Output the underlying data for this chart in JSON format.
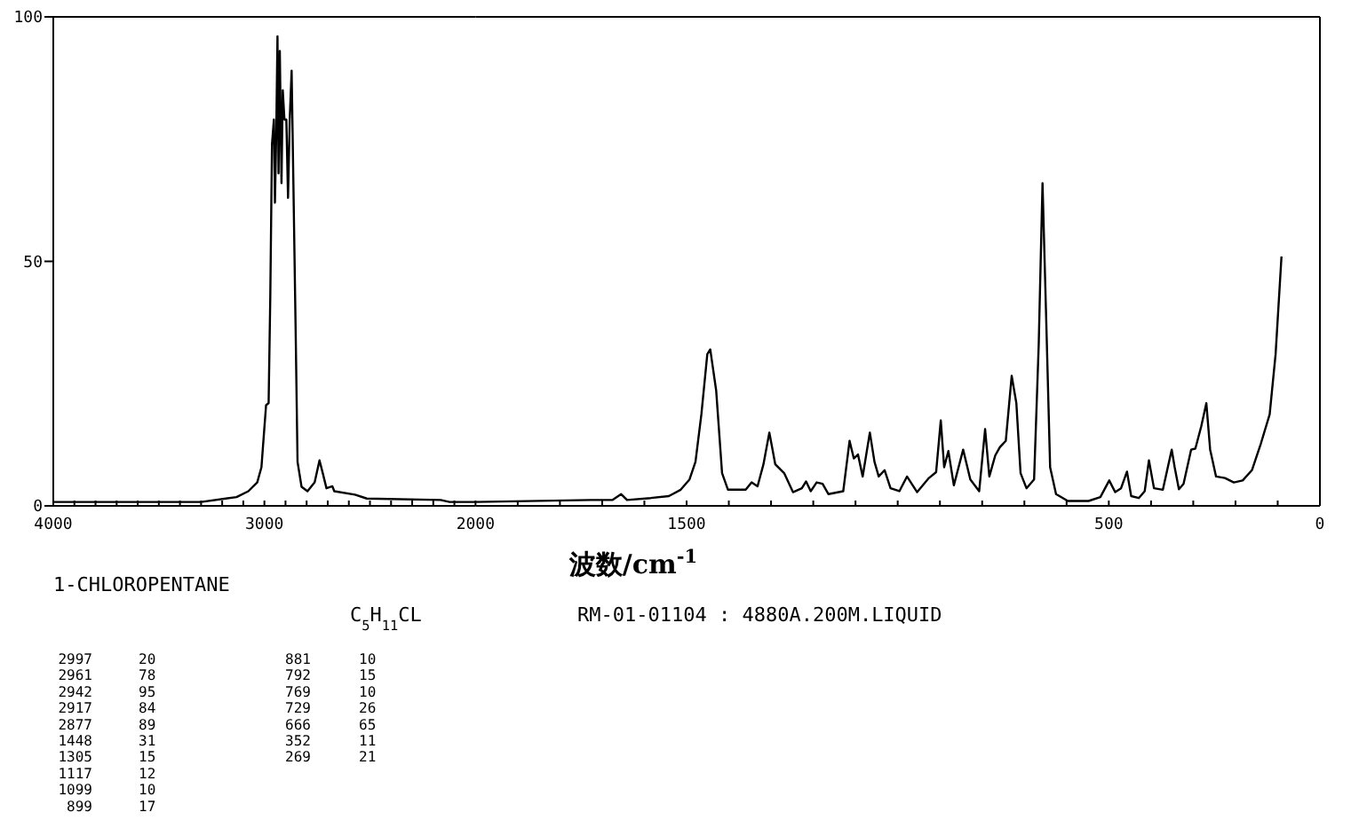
{
  "chart_data": [
    {
      "type": "line",
      "title": "1-CHLOROPENTANE",
      "subtitle": "C$_{5}$H$_{11}$CL",
      "xlim": [
        4000,
        2000
      ],
      "ylim": [
        0,
        100
      ],
      "xticks": [
        4000,
        {
          "value": 3900,
          "label": null
        },
        {
          "value": 3800,
          "label": null
        },
        {
          "value": 3700,
          "label": null
        },
        {
          "value": 3600,
          "label": null
        },
        {
          "value": 3500,
          "label": null
        },
        {
          "value": 3400,
          "label": null
        },
        {
          "value": 3300,
          "label": null
        },
        {
          "value": 3200,
          "label": null
        },
        {
          "value": 3100,
          "label": null
        },
        3000,
        {
          "value": 2900,
          "label": null
        },
        {
          "value": 2800,
          "label": null
        },
        {
          "value": 2700,
          "label": null
        },
        {
          "value": 2600,
          "label": null
        },
        {
          "value": 2500,
          "label": null
        },
        {
          "value": 2400,
          "label": null
        },
        {
          "value": 2300,
          "label": null
        },
        {
          "value": 2200,
          "label": null
        },
        {
          "value": 2100,
          "label": null
        }
      ],
      "yticks": [
        0,
        50,
        100
      ],
      "series": [
        {
          "color": "#000000",
          "x": [
            4000,
            3300,
            3132,
            3076,
            3034,
            3014,
            3000,
            2992,
            2980,
            2972,
            2964,
            2955,
            2950,
            2944,
            2938,
            2933,
            2927,
            2919,
            2913,
            2905,
            2896,
            2888,
            2880,
            2871,
            2863,
            2852,
            2843,
            2824,
            2796,
            2762,
            2739,
            2723,
            2706,
            2678,
            2669,
            2571,
            2515,
            2165,
            2123,
            2000
          ],
          "values": [
            0.8,
            0.8,
            1.8,
            3,
            4.8,
            7.9,
            16,
            20.6,
            21,
            43,
            74,
            79,
            62,
            76,
            96,
            68,
            93,
            66,
            85,
            79,
            79,
            63,
            79,
            89,
            67,
            36,
            9,
            3.9,
            3,
            4.8,
            9.3,
            6.6,
            3.6,
            4,
            3,
            2.3,
            1.5,
            1.2,
            0.8,
            0.8
          ]
        }
      ],
      "annotations": [
        "RM-01-01104 : 4880A.200M.LIQUID",
        "2997 20",
        "2961 78",
        "2942 95",
        "2917 84",
        "2877 89",
        "1448 31",
        "1305 15",
        "1117 12",
        "1099 10",
        "899 17",
        "881 10",
        "792 15",
        "769 10",
        "729 26",
        "666 65",
        "352 11",
        "269 21"
      ]
    },
    {
      "type": "line",
      "xlabel": "波数/cm$^{-1}$",
      "xlim": [
        2000,
        0
      ],
      "ylim": [
        0,
        100
      ],
      "tick_labels": "x",
      "xticks": [
        2000,
        {
          "value": 1900,
          "label": null
        },
        {
          "value": 1800,
          "label": null
        },
        {
          "value": 1700,
          "label": null
        },
        {
          "value": 1600,
          "label": null
        },
        1500,
        {
          "value": 1400,
          "label": null
        },
        {
          "value": 1300,
          "label": null
        },
        {
          "value": 1200,
          "label": null
        },
        {
          "value": 1100,
          "label": null
        },
        {
          "value": 1000,
          "label": null
        },
        {
          "value": 900,
          "label": null
        },
        {
          "value": 800,
          "label": null
        },
        {
          "value": 700,
          "label": null
        },
        {
          "value": 600,
          "label": null
        },
        500,
        {
          "value": 400,
          "label": null
        },
        {
          "value": 300,
          "label": null
        },
        {
          "value": 200,
          "label": null
        },
        {
          "value": 100,
          "label": null
        },
        0
      ],
      "series": [
        {
          "color": "#000000",
          "x": [
            2000,
            1726,
            1676,
            1655,
            1641,
            1585,
            1542,
            1514,
            1493,
            1479,
            1465,
            1451,
            1444,
            1430,
            1416,
            1402,
            1360,
            1346,
            1332,
            1318,
            1304,
            1290,
            1269,
            1248,
            1227,
            1217,
            1206,
            1192,
            1178,
            1164,
            1129,
            1114,
            1104,
            1094,
            1083,
            1066,
            1055,
            1045,
            1031,
            1017,
            996,
            978,
            954,
            926,
            909,
            898,
            890,
            880,
            867,
            845,
            828,
            807,
            793,
            783,
            769,
            758,
            744,
            730,
            719,
            709,
            695,
            677,
            666,
            657,
            649,
            639,
            625,
            597,
            548,
            520,
            499,
            485,
            471,
            457,
            447,
            429,
            415,
            405,
            393,
            372,
            351,
            344,
            334,
            323,
            305,
            295,
            281,
            269,
            260,
            246,
            225,
            204,
            183,
            161,
            140,
            119,
            105,
            91
          ],
          "values": [
            0.8,
            1.2,
            1.2,
            2.4,
            1.2,
            1.6,
            2,
            3.3,
            5.4,
            9,
            18.7,
            31,
            32,
            23.6,
            6.7,
            3.3,
            3.3,
            4.8,
            4,
            8.5,
            15,
            8.5,
            6.7,
            2.8,
            3.6,
            5,
            3,
            4.8,
            4.5,
            2.4,
            3,
            13.3,
            9.7,
            10.5,
            6,
            15,
            9,
            6,
            7.3,
            3.6,
            3,
            6,
            2.8,
            5.7,
            6.9,
            17.5,
            7.9,
            11.2,
            4.2,
            11.5,
            5.4,
            3,
            15.7,
            6,
            10.3,
            12,
            13.3,
            26.6,
            21,
            6.7,
            3.6,
            5.4,
            33,
            66,
            40.5,
            7.9,
            2.4,
            1,
            1,
            1.8,
            5.2,
            2.8,
            3.6,
            7,
            2,
            1.6,
            3,
            9.3,
            3.6,
            3.3,
            11.5,
            7.9,
            3.4,
            4.5,
            11.5,
            11.7,
            16.3,
            21,
            11.5,
            6,
            5.7,
            4.8,
            5.2,
            7.3,
            12.7,
            18.7,
            31,
            51
          ]
        }
      ]
    }
  ]
}
